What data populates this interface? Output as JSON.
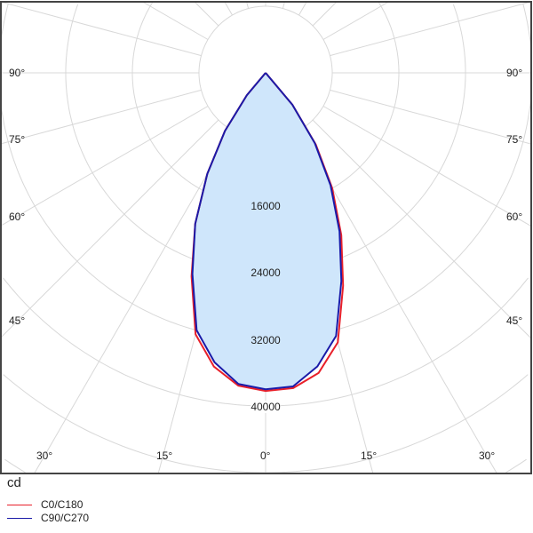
{
  "chart_data": {
    "type": "polar",
    "unit": "cd",
    "radial_ticks": [
      16000,
      24000,
      32000,
      40000
    ],
    "angle_labels_bottom": [
      "30°",
      "15°",
      "0°",
      "15°",
      "30°"
    ],
    "angle_labels_left": [
      "90°",
      "75°",
      "60°",
      "45°"
    ],
    "angle_labels_right": [
      "90°",
      "75°",
      "60°",
      "45°"
    ],
    "grid": true,
    "legend_placement": "bottom-left",
    "gamma": [
      -45,
      -40,
      -35,
      -30,
      -25,
      -20,
      -15,
      -10,
      -5,
      0,
      5,
      10,
      15,
      20,
      25,
      30,
      35,
      40,
      45
    ],
    "series": [
      {
        "name": "C0/C180",
        "color": "#e8202a",
        "values": [
          0,
          3500,
          8500,
          14000,
          20000,
          26000,
          32500,
          35800,
          37700,
          38200,
          38000,
          36600,
          33500,
          27200,
          21500,
          16000,
          10500,
          5000,
          0
        ]
      },
      {
        "name": "C90/C270",
        "color": "#1a1aa8",
        "values": [
          0,
          3500,
          8500,
          14000,
          20000,
          25700,
          32000,
          35300,
          37500,
          38000,
          37800,
          35800,
          32700,
          26600,
          21000,
          15600,
          10300,
          5000,
          0
        ]
      }
    ],
    "fill_color": "#cfe6fb"
  }
}
